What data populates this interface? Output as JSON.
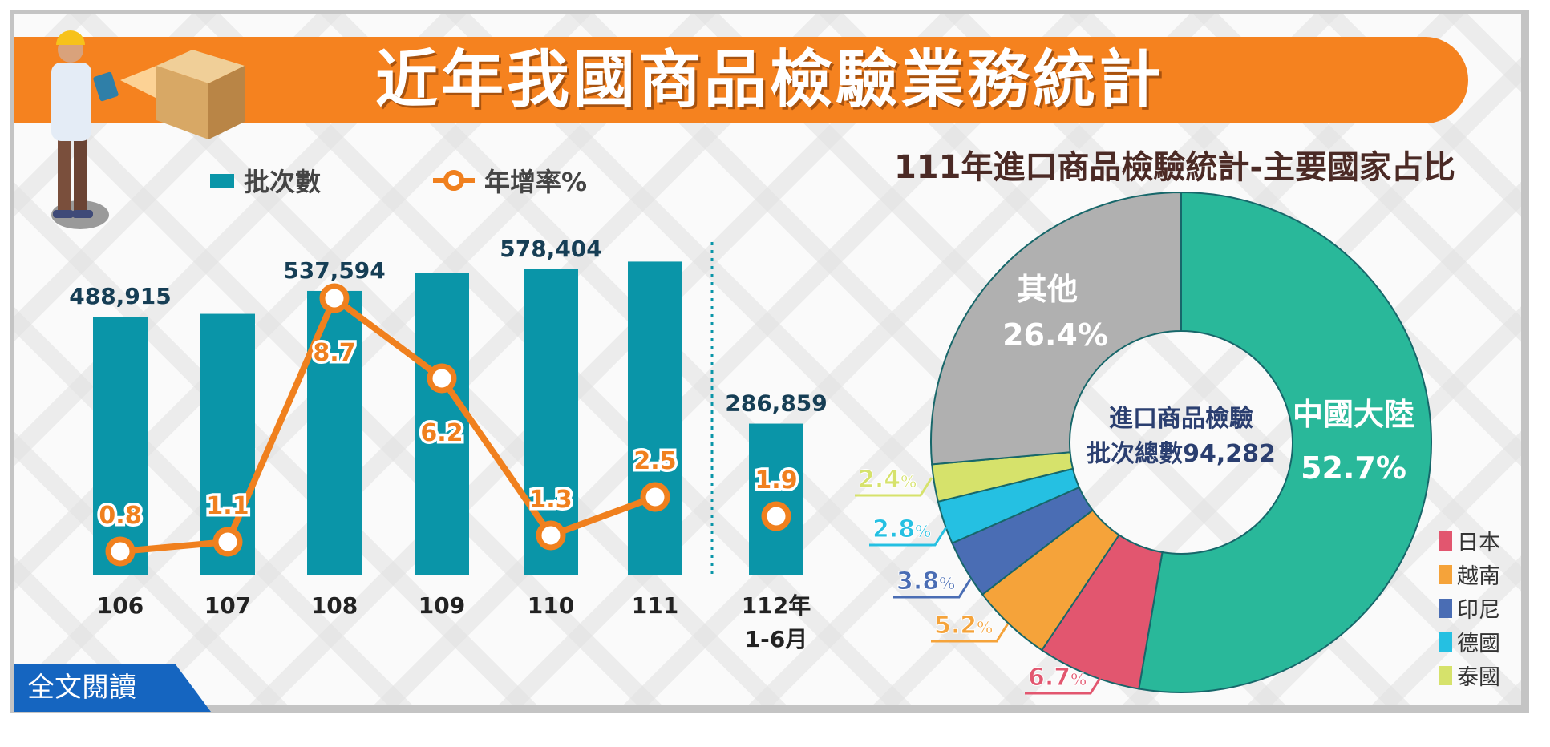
{
  "header": {
    "title": "近年我國商品檢驗業務統計"
  },
  "read_more_label": "全文閱讀",
  "chart_data": [
    {
      "type": "bar+line",
      "legend": {
        "bars": "批次數",
        "line": "年增率%",
        "placement": "top-left"
      },
      "categories": [
        "106",
        "107",
        "108",
        "109",
        "110",
        "111",
        "112年 1-6月"
      ],
      "category_lines": [
        [
          "106"
        ],
        [
          "107"
        ],
        [
          "108"
        ],
        [
          "109"
        ],
        [
          "110"
        ],
        [
          "111"
        ],
        [
          "112年",
          "1-6月"
        ]
      ],
      "series": [
        {
          "name": "批次數",
          "values": [
            488915,
            494300,
            537594,
            571000,
            578404,
            592900,
            286859
          ],
          "labels": [
            "488,915",
            "",
            "537,594",
            "",
            "578,404",
            "",
            "286,859"
          ]
        },
        {
          "name": "年增率%",
          "values": [
            0.8,
            1.1,
            8.7,
            6.2,
            1.3,
            2.5,
            1.9
          ],
          "labels": [
            "0.8",
            "1.1",
            "8.7",
            "6.2",
            "1.3",
            "2.5",
            "1.9"
          ]
        }
      ],
      "colors": {
        "bar": "#0a95a8",
        "line": "#f0801e"
      }
    },
    {
      "type": "pie",
      "title": "111年進口商品檢驗統計-主要國家占比",
      "center_text": [
        "進口商品檢驗",
        "批次總數94,282"
      ],
      "slices": [
        {
          "name": "中國大陸",
          "value": 52.7,
          "label": "52.7%",
          "color": "#29b89a"
        },
        {
          "name": "日本",
          "value": 6.7,
          "label": "6.7",
          "color": "#e2566f"
        },
        {
          "name": "越南",
          "value": 5.2,
          "label": "5.2",
          "color": "#f5a33a"
        },
        {
          "name": "印尼",
          "value": 3.8,
          "label": "3.8",
          "color": "#4a6db4"
        },
        {
          "name": "德國",
          "value": 2.8,
          "label": "2.8",
          "color": "#25c0e2"
        },
        {
          "name": "泰國",
          "value": 2.4,
          "label": "2.4",
          "color": "#d6e26b"
        },
        {
          "name": "其他",
          "value": 26.4,
          "label": "26.4%",
          "color": "#b0b0b0"
        }
      ],
      "pct_sign": "%",
      "legend": [
        "日本",
        "越南",
        "印尼",
        "德國",
        "泰國"
      ],
      "legend_placement": "bottom-right"
    }
  ]
}
